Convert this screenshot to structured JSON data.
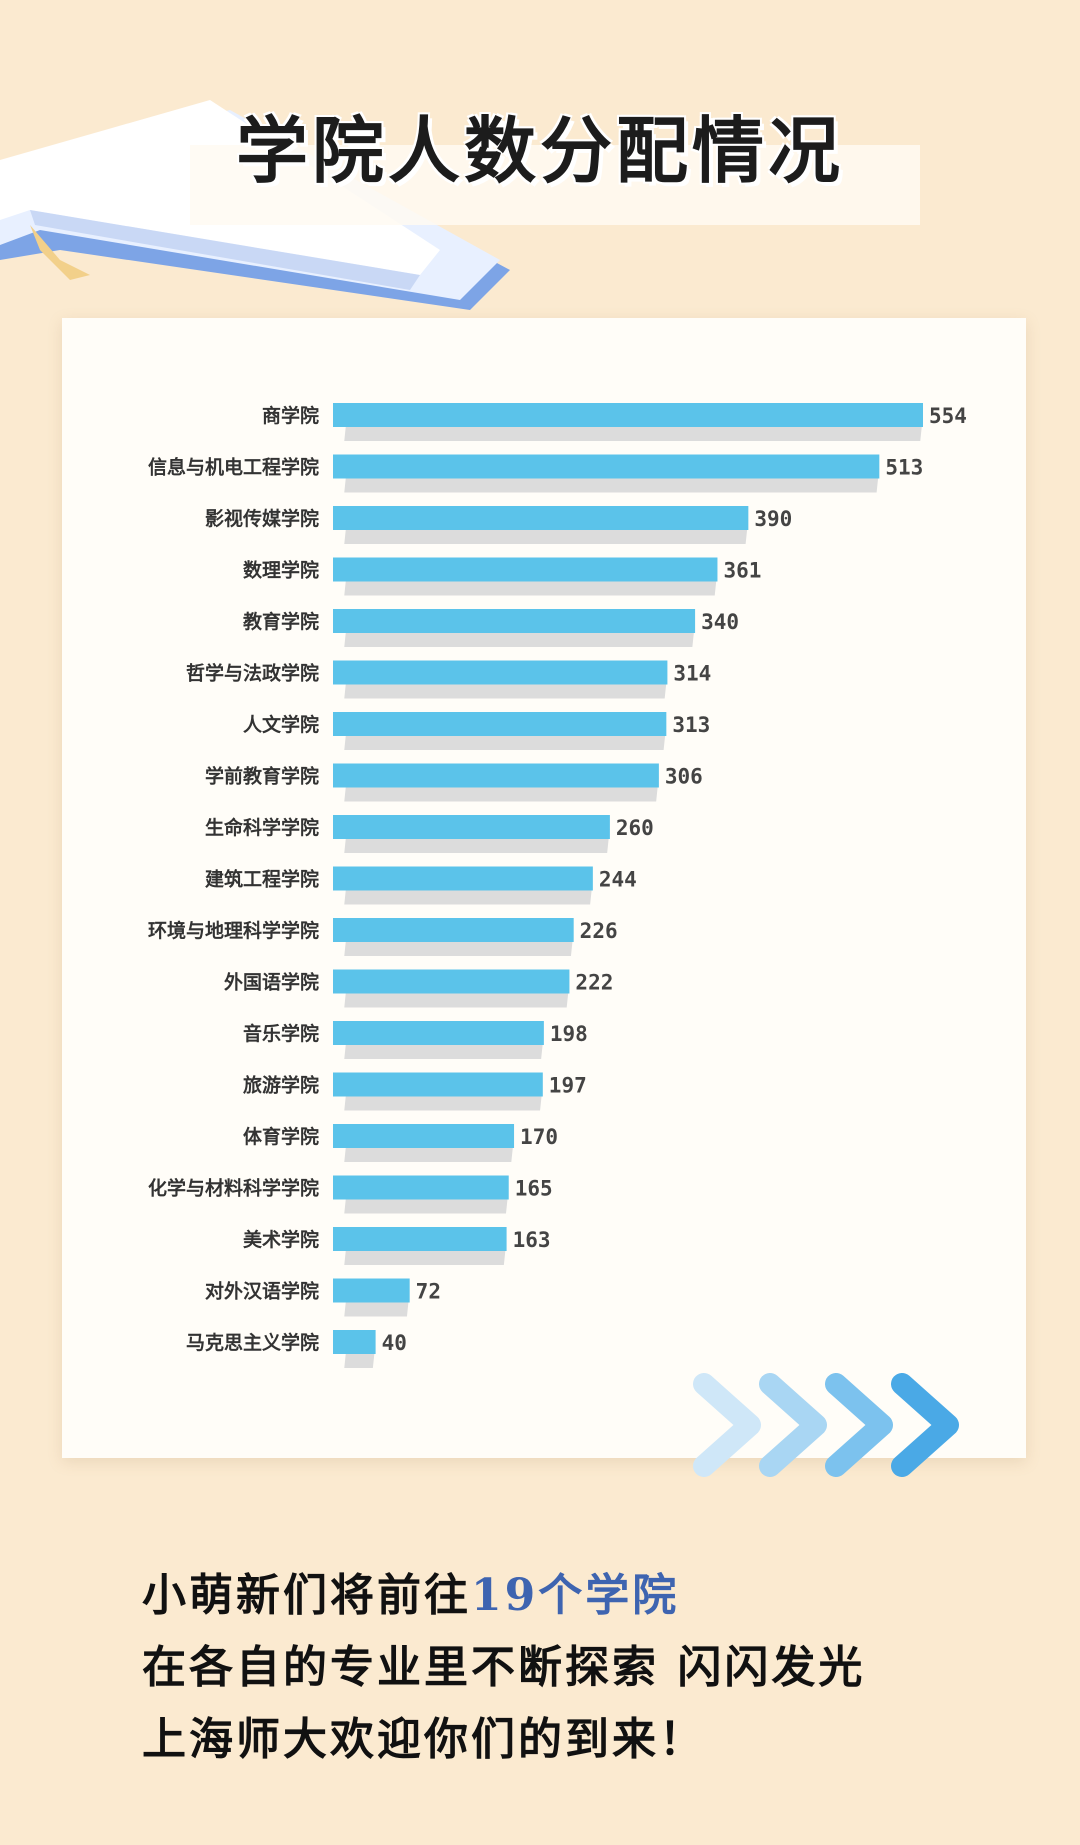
{
  "title": "学院人数分配情况",
  "colors": {
    "bar": "#5bc3ea",
    "bar_shadow": "#dcdcdc",
    "background": "#fbead0",
    "highlight": "#3e64b0"
  },
  "chart_data": {
    "type": "bar",
    "orientation": "horizontal",
    "title": "",
    "xlabel": "",
    "ylabel": "",
    "xlim": [
      0,
      554
    ],
    "grid": false,
    "categories": [
      "商学院",
      "信息与机电工程学院",
      "影视传媒学院",
      "数理学院",
      "教育学院",
      "哲学与法政学院",
      "人文学院",
      "学前教育学院",
      "生命科学学院",
      "建筑工程学院",
      "环境与地理科学学院",
      "外国语学院",
      "音乐学院",
      "旅游学院",
      "体育学院",
      "化学与材料科学学院",
      "美术学院",
      "对外汉语学院",
      "马克思主义学院"
    ],
    "values": [
      554,
      513,
      390,
      361,
      340,
      314,
      313,
      306,
      260,
      244,
      226,
      222,
      198,
      197,
      170,
      165,
      163,
      72,
      40
    ]
  },
  "outro": {
    "line1_prefix": "小萌新们将前往",
    "line1_highlight": "19个学院",
    "line2": "在各自的专业里不断探索 闪闪发光",
    "line3": "上海师大欢迎你们的到来！"
  }
}
